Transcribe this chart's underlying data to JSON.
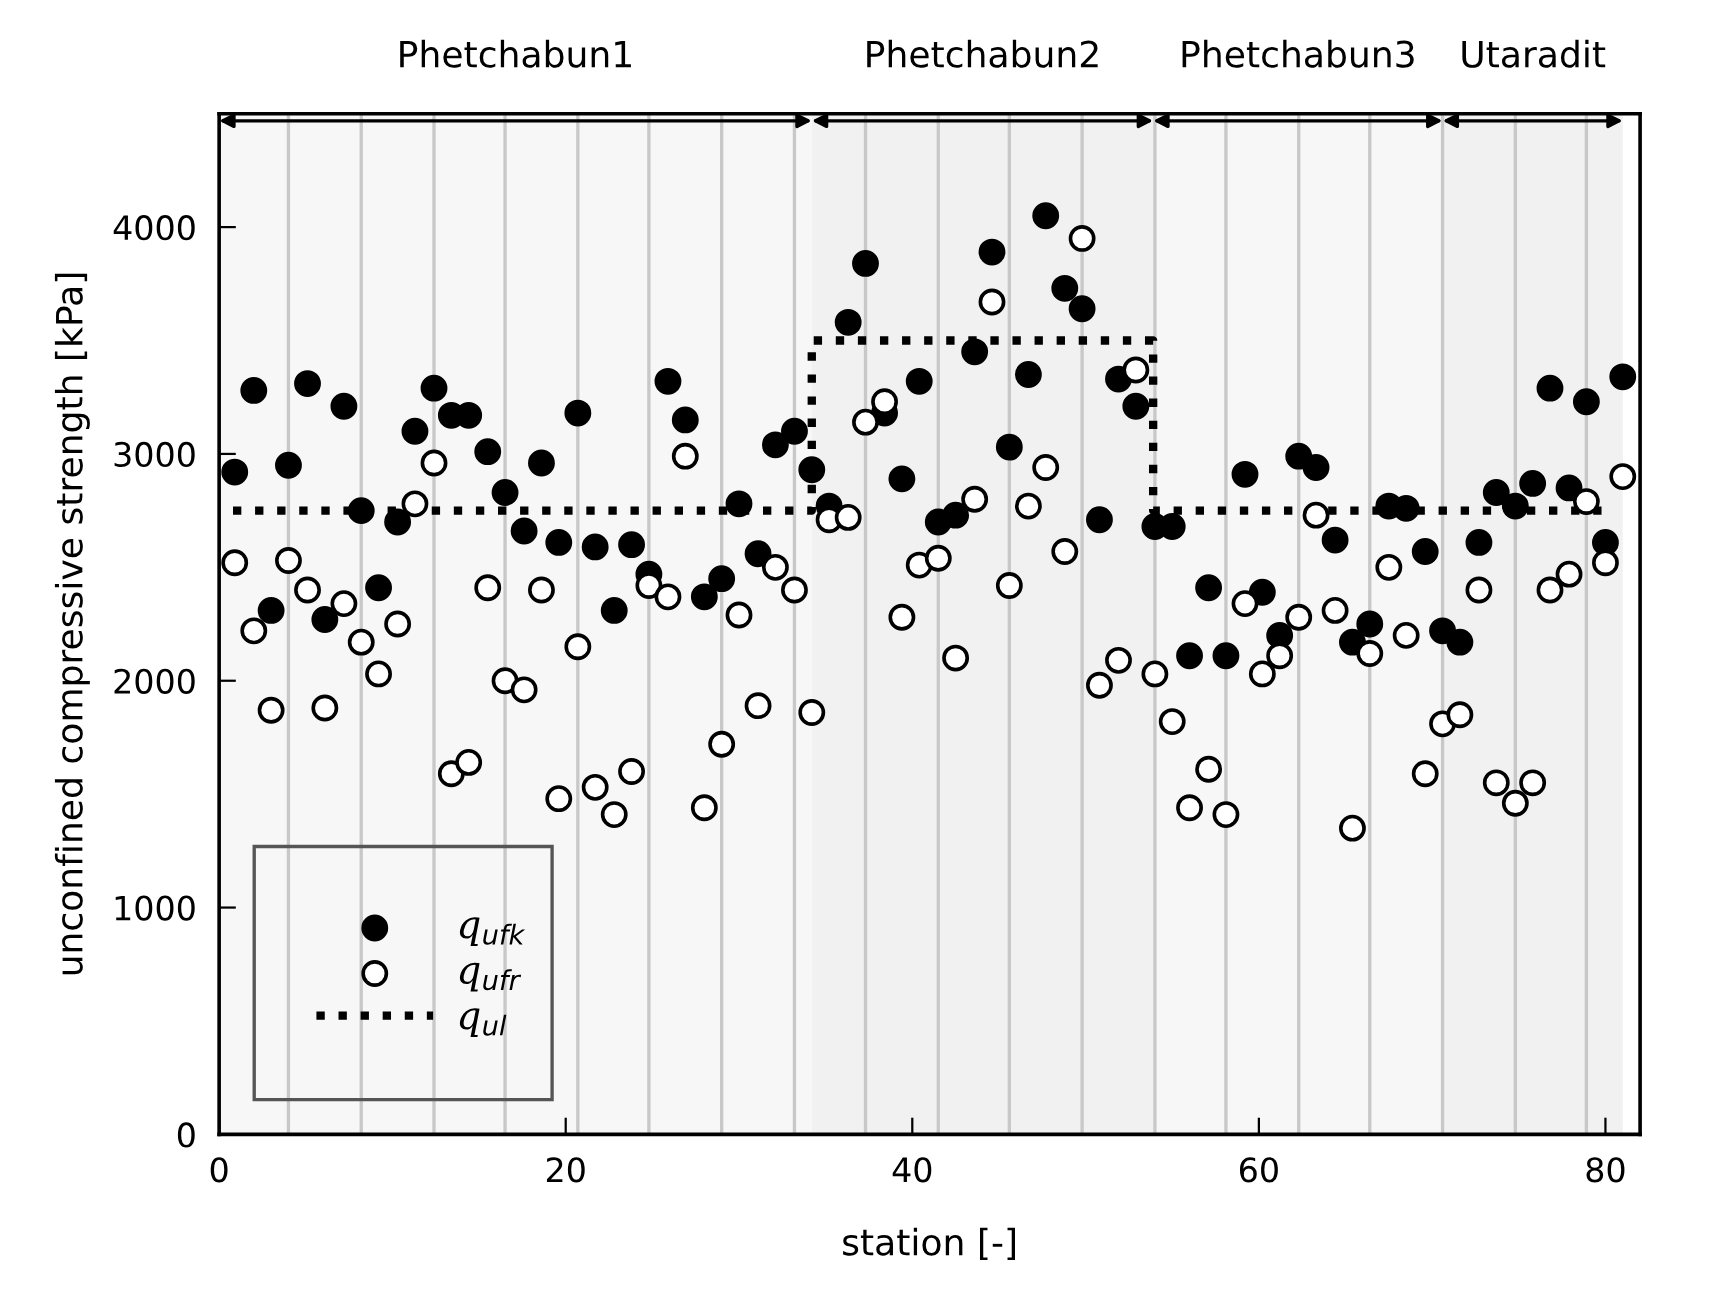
{
  "chart_data": {
    "type": "scatter",
    "xlabel": "station [-]",
    "ylabel": "unconfined compressive strength [kPa]",
    "xlim": [
      0,
      82
    ],
    "ylim": [
      0,
      4500
    ],
    "xticks": [
      0,
      20,
      40,
      60,
      80
    ],
    "yticks": [
      0,
      1000,
      2000,
      3000,
      4000
    ],
    "grid": false,
    "legend": "bottom left",
    "series": [
      {
        "name": "q$_{ufk}$",
        "marker": "circle",
        "color": "#000000",
        "x": [
          0.9,
          2.0,
          3.0,
          4.0,
          5.1,
          6.1,
          7.2,
          8.2,
          9.2,
          10.3,
          11.3,
          12.4,
          13.4,
          14.4,
          15.5,
          16.5,
          17.6,
          18.6,
          19.6,
          20.7,
          21.7,
          22.8,
          23.8,
          24.8,
          25.9,
          26.9,
          28.0,
          29.0,
          30.0,
          31.1,
          32.1,
          33.2,
          34.2,
          35.2,
          36.3,
          37.3,
          38.4,
          39.4,
          40.4,
          41.5,
          42.5,
          43.6,
          44.6,
          45.6,
          46.7,
          47.7,
          48.8,
          49.8,
          50.8,
          51.9,
          52.9,
          54.0,
          55.0,
          56.0,
          57.1,
          58.1,
          59.2,
          60.2,
          61.2,
          62.3,
          63.3,
          64.4,
          65.4,
          66.4,
          67.5,
          68.5,
          69.6,
          70.6,
          71.6,
          72.7,
          73.7,
          74.8,
          75.8,
          76.8,
          77.9,
          78.9,
          80.0,
          81.0
        ],
        "values": [
          2920,
          3280,
          2310,
          2950,
          3310,
          2270,
          3210,
          2750,
          2410,
          2700,
          3100,
          3290,
          3170,
          3170,
          3010,
          2830,
          2660,
          2960,
          2610,
          3180,
          2590,
          2310,
          2600,
          2470,
          3320,
          3150,
          2370,
          2450,
          2780,
          2560,
          3040,
          3100,
          2930,
          2770,
          3580,
          3840,
          3180,
          2890,
          3320,
          2700,
          2730,
          3450,
          3890,
          3030,
          3350,
          4050,
          3730,
          3640,
          2710,
          3330,
          3210,
          2680,
          2680,
          2110,
          2410,
          2110,
          2910,
          2390,
          2200,
          2990,
          2940,
          2620,
          2170,
          2250,
          2770,
          2760,
          2570,
          2220,
          2170,
          2610,
          2830,
          2770,
          2870,
          3290,
          2850,
          3230,
          2610,
          3340
        ]
      },
      {
        "name": "q$_{ufr}$",
        "marker": "circle",
        "color": "#ffffff",
        "x": [
          0.9,
          2.0,
          3.0,
          4.0,
          5.1,
          6.1,
          7.2,
          8.2,
          9.2,
          10.3,
          11.3,
          12.4,
          13.4,
          14.4,
          15.5,
          16.5,
          17.6,
          18.6,
          19.6,
          20.7,
          21.7,
          22.8,
          23.8,
          24.8,
          25.9,
          26.9,
          28.0,
          29.0,
          30.0,
          31.1,
          32.1,
          33.2,
          34.2,
          35.2,
          36.3,
          37.3,
          38.4,
          39.4,
          40.4,
          41.5,
          42.5,
          43.6,
          44.6,
          45.6,
          46.7,
          47.7,
          48.8,
          49.8,
          50.8,
          51.9,
          52.9,
          54.0,
          55.0,
          56.0,
          57.1,
          58.1,
          59.2,
          60.2,
          61.2,
          62.3,
          63.3,
          64.4,
          65.4,
          66.4,
          67.5,
          68.5,
          69.6,
          70.6,
          71.6,
          72.7,
          73.7,
          74.8,
          75.8,
          76.8,
          77.9,
          78.9,
          80.0,
          81.0
        ],
        "values": [
          2520,
          2220,
          1870,
          2530,
          2400,
          1880,
          2340,
          2170,
          2030,
          2250,
          2780,
          2960,
          1590,
          1640,
          2410,
          2000,
          1960,
          2400,
          1480,
          2150,
          1530,
          1410,
          1600,
          2420,
          2370,
          2990,
          1440,
          1720,
          2290,
          1890,
          2500,
          2400,
          1860,
          2710,
          2720,
          3140,
          3230,
          2280,
          2510,
          2540,
          2100,
          2800,
          3670,
          2420,
          2770,
          2940,
          2570,
          3950,
          1980,
          2090,
          3370,
          2030,
          1820,
          1440,
          1610,
          1410,
          2340,
          2030,
          2110,
          2280,
          2730,
          2310,
          1350,
          2120,
          2500,
          2200,
          1590,
          1810,
          1850,
          2400,
          1550,
          1460,
          1550,
          2400,
          2470,
          2790,
          2520,
          2900
        ]
      },
      {
        "name": "q$_{ul}$",
        "type": "line",
        "color": "#000000",
        "line_style": "dotted",
        "x": [
          0.8,
          34.2,
          34.2,
          53.9,
          53.9,
          80.2
        ],
        "values": [
          2750,
          2750,
          3500,
          3500,
          2750,
          2750
        ]
      }
    ],
    "ref_lines": [
      {
        "axis": "x",
        "value": 4.0,
        "color": "#c8c8c8"
      },
      {
        "axis": "x",
        "value": 8.2,
        "color": "#c8c8c8"
      },
      {
        "axis": "x",
        "value": 12.4,
        "color": "#c8c8c8"
      },
      {
        "axis": "x",
        "value": 16.5,
        "color": "#c8c8c8"
      },
      {
        "axis": "x",
        "value": 20.7,
        "color": "#c8c8c8"
      },
      {
        "axis": "x",
        "value": 24.8,
        "color": "#c8c8c8"
      },
      {
        "axis": "x",
        "value": 29.0,
        "color": "#c8c8c8"
      },
      {
        "axis": "x",
        "value": 33.2,
        "color": "#c8c8c8"
      },
      {
        "axis": "x",
        "value": 37.3,
        "color": "#c8c8c8"
      },
      {
        "axis": "x",
        "value": 41.5,
        "color": "#c8c8c8"
      },
      {
        "axis": "x",
        "value": 45.6,
        "color": "#c8c8c8"
      },
      {
        "axis": "x",
        "value": 49.8,
        "color": "#c8c8c8"
      },
      {
        "axis": "x",
        "value": 54.0,
        "color": "#c8c8c8"
      },
      {
        "axis": "x",
        "value": 58.1,
        "color": "#c8c8c8"
      },
      {
        "axis": "x",
        "value": 62.3,
        "color": "#c8c8c8"
      },
      {
        "axis": "x",
        "value": 66.4,
        "color": "#c8c8c8"
      },
      {
        "axis": "x",
        "value": 70.6,
        "color": "#c8c8c8"
      },
      {
        "axis": "x",
        "value": 74.8,
        "color": "#c8c8c8"
      },
      {
        "axis": "x",
        "value": 78.9,
        "color": "#c8c8c8"
      }
    ],
    "bands": [
      {
        "axis": "x",
        "from": 0,
        "to": 34.2,
        "label": "Phetchabun1",
        "color": "#f7f7f7"
      },
      {
        "axis": "x",
        "from": 34.2,
        "to": 53.9,
        "label": "Phetchabun2",
        "color": "#f1f1f1"
      },
      {
        "axis": "x",
        "from": 53.9,
        "to": 70.6,
        "label": "Phetchabun3",
        "color": "#f7f7f7"
      },
      {
        "axis": "x",
        "from": 70.6,
        "to": 81.0,
        "label": "Utaradit",
        "color": "#f1f1f1"
      }
    ]
  }
}
